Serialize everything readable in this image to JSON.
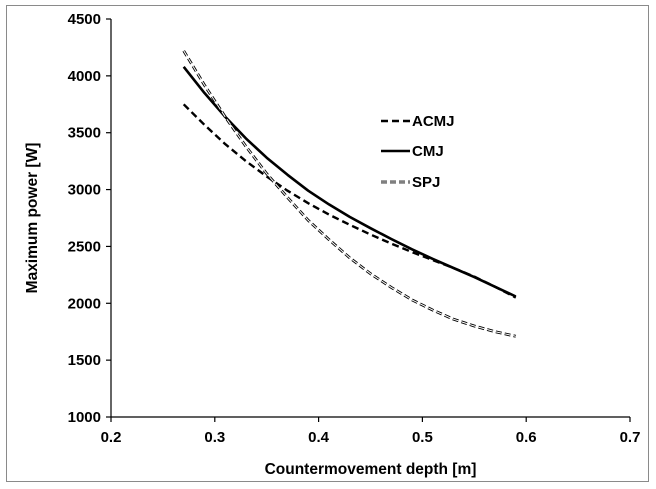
{
  "chart_data": {
    "type": "line",
    "title": "",
    "xlabel": "Countermovement depth [m]",
    "ylabel": "Maximum power [W]",
    "xlim": [
      0.2,
      0.7
    ],
    "ylim": [
      1000,
      4500
    ],
    "xticks": [
      "0.2",
      "0.3",
      "0.4",
      "0.5",
      "0.6",
      "0.7"
    ],
    "yticks": [
      "1000",
      "1500",
      "2000",
      "2500",
      "3000",
      "3500",
      "4000",
      "4500"
    ],
    "grid": false,
    "legend_position": "right",
    "series": [
      {
        "name": "ACMJ",
        "style": "dashed",
        "color": "#000000",
        "x": [
          0.27,
          0.29,
          0.31,
          0.33,
          0.35,
          0.37,
          0.39,
          0.41,
          0.43,
          0.45,
          0.47,
          0.49,
          0.51,
          0.53,
          0.55,
          0.57,
          0.59
        ],
        "y": [
          3750,
          3570,
          3400,
          3250,
          3115,
          2990,
          2880,
          2780,
          2690,
          2605,
          2525,
          2450,
          2380,
          2310,
          2235,
          2145,
          2050
        ]
      },
      {
        "name": "CMJ",
        "style": "solid",
        "color": "#000000",
        "x": [
          0.27,
          0.29,
          0.31,
          0.33,
          0.35,
          0.37,
          0.39,
          0.41,
          0.43,
          0.45,
          0.47,
          0.49,
          0.51,
          0.53,
          0.55,
          0.57,
          0.59
        ],
        "y": [
          4080,
          3850,
          3640,
          3450,
          3280,
          3130,
          2990,
          2870,
          2760,
          2660,
          2565,
          2475,
          2390,
          2310,
          2230,
          2145,
          2060
        ]
      },
      {
        "name": "SPJ",
        "style": "outlined-dashed",
        "color": "#000000",
        "x": [
          0.27,
          0.29,
          0.31,
          0.33,
          0.35,
          0.37,
          0.39,
          0.41,
          0.43,
          0.45,
          0.47,
          0.49,
          0.51,
          0.53,
          0.55,
          0.57,
          0.59
        ],
        "y": [
          4220,
          3920,
          3640,
          3380,
          3140,
          2930,
          2730,
          2560,
          2400,
          2260,
          2140,
          2030,
          1940,
          1860,
          1800,
          1750,
          1710
        ]
      }
    ]
  }
}
